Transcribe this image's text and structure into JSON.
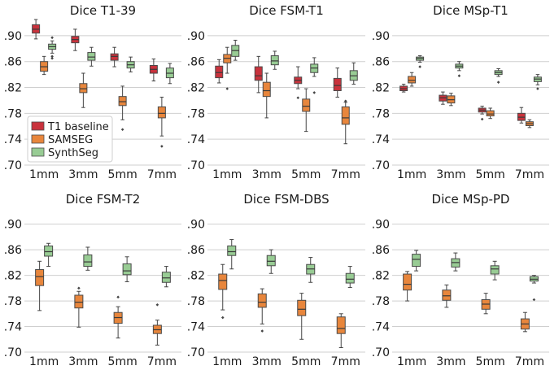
{
  "colors": {
    "t1_baseline": "#c9323c",
    "samseg": "#e8863c",
    "synthseg": "#98cc94",
    "grid": "#cfcfcf"
  },
  "legend": {
    "placement": "lower-left of first panel",
    "entries": [
      "T1 baseline",
      "SAMSEG",
      "SynthSeg"
    ]
  },
  "chart_data": [
    {
      "type": "box",
      "title": "Dice T1-39",
      "categories": [
        "1mm",
        "3mm",
        "5mm",
        "7mm"
      ],
      "ylim": [
        0.7,
        0.925
      ],
      "yticks": [
        ".70",
        ".74",
        ".78",
        ".82",
        ".86",
        ".90"
      ],
      "series": [
        {
          "name": "T1 baseline",
          "boxes": [
            {
              "lo": 0.895,
              "q1": 0.904,
              "med": 0.91,
              "q3": 0.917,
              "hi": 0.925,
              "fliers": []
            },
            {
              "lo": 0.877,
              "q1": 0.889,
              "med": 0.894,
              "q3": 0.899,
              "hi": 0.91,
              "fliers": []
            },
            {
              "lo": 0.852,
              "q1": 0.862,
              "med": 0.868,
              "q3": 0.872,
              "hi": 0.882,
              "fliers": []
            },
            {
              "lo": 0.83,
              "q1": 0.842,
              "med": 0.848,
              "q3": 0.854,
              "hi": 0.864,
              "fliers": []
            }
          ]
        },
        {
          "name": "SAMSEG",
          "boxes": [
            {
              "lo": 0.84,
              "q1": 0.845,
              "med": 0.852,
              "q3": 0.86,
              "hi": 0.868,
              "fliers": []
            },
            {
              "lo": 0.789,
              "q1": 0.812,
              "med": 0.818,
              "q3": 0.826,
              "hi": 0.842,
              "fliers": []
            },
            {
              "lo": 0.77,
              "q1": 0.792,
              "med": 0.798,
              "q3": 0.806,
              "hi": 0.822,
              "fliers": [
                0.755
              ]
            },
            {
              "lo": 0.745,
              "q1": 0.773,
              "med": 0.78,
              "q3": 0.79,
              "hi": 0.805,
              "fliers": [
                0.729
              ]
            }
          ]
        },
        {
          "name": "SynthSeg",
          "boxes": [
            {
              "lo": 0.873,
              "q1": 0.879,
              "med": 0.883,
              "q3": 0.887,
              "hi": 0.892,
              "fliers": [
                0.868,
                0.865,
                0.897
              ]
            },
            {
              "lo": 0.853,
              "q1": 0.862,
              "med": 0.867,
              "q3": 0.874,
              "hi": 0.882,
              "fliers": []
            },
            {
              "lo": 0.844,
              "q1": 0.85,
              "med": 0.855,
              "q3": 0.86,
              "hi": 0.867,
              "fliers": []
            },
            {
              "lo": 0.826,
              "q1": 0.835,
              "med": 0.842,
              "q3": 0.85,
              "hi": 0.857,
              "fliers": []
            }
          ]
        }
      ]
    },
    {
      "type": "box",
      "title": "Dice FSM-T1",
      "categories": [
        "1mm",
        "3mm",
        "5mm",
        "7mm"
      ],
      "ylim": [
        0.7,
        0.925
      ],
      "yticks": [
        ".70",
        ".74",
        ".78",
        ".82",
        ".86",
        ".90"
      ],
      "series": [
        {
          "name": "T1 baseline",
          "boxes": [
            {
              "lo": 0.827,
              "q1": 0.835,
              "med": 0.843,
              "q3": 0.853,
              "hi": 0.863,
              "fliers": []
            },
            {
              "lo": 0.812,
              "q1": 0.831,
              "med": 0.838,
              "q3": 0.852,
              "hi": 0.868,
              "fliers": []
            },
            {
              "lo": 0.818,
              "q1": 0.826,
              "med": 0.831,
              "q3": 0.836,
              "hi": 0.852,
              "fliers": [
                0.804
              ]
            },
            {
              "lo": 0.805,
              "q1": 0.815,
              "med": 0.823,
              "q3": 0.834,
              "hi": 0.85,
              "fliers": []
            }
          ]
        },
        {
          "name": "SAMSEG",
          "boxes": [
            {
              "lo": 0.842,
              "q1": 0.858,
              "med": 0.865,
              "q3": 0.871,
              "hi": 0.882,
              "fliers": [
                0.818
              ]
            },
            {
              "lo": 0.773,
              "q1": 0.806,
              "med": 0.815,
              "q3": 0.828,
              "hi": 0.842,
              "fliers": []
            },
            {
              "lo": 0.752,
              "q1": 0.783,
              "med": 0.791,
              "q3": 0.802,
              "hi": 0.818,
              "fliers": []
            },
            {
              "lo": 0.733,
              "q1": 0.763,
              "med": 0.773,
              "q3": 0.79,
              "hi": 0.797,
              "fliers": [
                0.799
              ]
            }
          ]
        },
        {
          "name": "SynthSeg",
          "boxes": [
            {
              "lo": 0.862,
              "q1": 0.868,
              "med": 0.877,
              "q3": 0.885,
              "hi": 0.893,
              "fliers": []
            },
            {
              "lo": 0.848,
              "q1": 0.855,
              "med": 0.861,
              "q3": 0.869,
              "hi": 0.876,
              "fliers": []
            },
            {
              "lo": 0.837,
              "q1": 0.843,
              "med": 0.85,
              "q3": 0.856,
              "hi": 0.866,
              "fliers": [
                0.812
              ]
            },
            {
              "lo": 0.825,
              "q1": 0.831,
              "med": 0.838,
              "q3": 0.846,
              "hi": 0.858,
              "fliers": []
            }
          ]
        }
      ]
    },
    {
      "type": "box",
      "title": "Dice MSp-T1",
      "categories": [
        "1mm",
        "3mm",
        "5mm",
        "7mm"
      ],
      "ylim": [
        0.7,
        0.925
      ],
      "yticks": [
        ".70",
        ".74",
        ".78",
        ".82",
        ".86",
        ".90"
      ],
      "series": [
        {
          "name": "T1 baseline",
          "boxes": [
            {
              "lo": 0.813,
              "q1": 0.815,
              "med": 0.818,
              "q3": 0.822,
              "hi": 0.825,
              "fliers": []
            },
            {
              "lo": 0.794,
              "q1": 0.799,
              "med": 0.804,
              "q3": 0.808,
              "hi": 0.813,
              "fliers": []
            },
            {
              "lo": 0.779,
              "q1": 0.782,
              "med": 0.785,
              "q3": 0.788,
              "hi": 0.791,
              "fliers": [
                0.771
              ]
            },
            {
              "lo": 0.765,
              "q1": 0.769,
              "med": 0.774,
              "q3": 0.78,
              "hi": 0.789,
              "fliers": []
            }
          ]
        },
        {
          "name": "SAMSEG",
          "boxes": [
            {
              "lo": 0.822,
              "q1": 0.827,
              "med": 0.831,
              "q3": 0.837,
              "hi": 0.843,
              "fliers": []
            },
            {
              "lo": 0.792,
              "q1": 0.796,
              "med": 0.801,
              "q3": 0.807,
              "hi": 0.811,
              "fliers": []
            },
            {
              "lo": 0.772,
              "q1": 0.776,
              "med": 0.779,
              "q3": 0.784,
              "hi": 0.788,
              "fliers": []
            },
            {
              "lo": 0.758,
              "q1": 0.761,
              "med": 0.764,
              "q3": 0.767,
              "hi": 0.77,
              "fliers": []
            }
          ]
        },
        {
          "name": "SynthSeg",
          "boxes": [
            {
              "lo": 0.859,
              "q1": 0.862,
              "med": 0.865,
              "q3": 0.867,
              "hi": 0.869,
              "fliers": [
                0.852
              ]
            },
            {
              "lo": 0.846,
              "q1": 0.85,
              "med": 0.853,
              "q3": 0.856,
              "hi": 0.86,
              "fliers": [
                0.838
              ]
            },
            {
              "lo": 0.837,
              "q1": 0.84,
              "med": 0.843,
              "q3": 0.846,
              "hi": 0.849,
              "fliers": [
                0.828
              ]
            },
            {
              "lo": 0.824,
              "q1": 0.829,
              "med": 0.833,
              "q3": 0.836,
              "hi": 0.84,
              "fliers": [
                0.818
              ]
            }
          ]
        }
      ]
    },
    {
      "type": "box",
      "title": "Dice FSM-T2",
      "categories": [
        "1mm",
        "3mm",
        "5mm",
        "7mm"
      ],
      "ylim": [
        0.7,
        0.925
      ],
      "yticks": [
        ".70",
        ".74",
        ".78",
        ".82",
        ".86",
        ".90"
      ],
      "series": [
        {
          "name": "SAMSEG",
          "boxes": [
            {
              "lo": 0.765,
              "q1": 0.804,
              "med": 0.818,
              "q3": 0.829,
              "hi": 0.842,
              "fliers": []
            },
            {
              "lo": 0.739,
              "q1": 0.769,
              "med": 0.778,
              "q3": 0.789,
              "hi": 0.795,
              "fliers": [
                0.8
              ]
            },
            {
              "lo": 0.722,
              "q1": 0.745,
              "med": 0.754,
              "q3": 0.762,
              "hi": 0.771,
              "fliers": [
                0.786
              ]
            },
            {
              "lo": 0.711,
              "q1": 0.729,
              "med": 0.735,
              "q3": 0.742,
              "hi": 0.75,
              "fliers": [
                0.774
              ]
            }
          ]
        },
        {
          "name": "SynthSeg",
          "boxes": [
            {
              "lo": 0.834,
              "q1": 0.85,
              "med": 0.857,
              "q3": 0.866,
              "hi": 0.87,
              "fliers": []
            },
            {
              "lo": 0.828,
              "q1": 0.834,
              "med": 0.841,
              "q3": 0.852,
              "hi": 0.864,
              "fliers": []
            },
            {
              "lo": 0.81,
              "q1": 0.821,
              "med": 0.827,
              "q3": 0.838,
              "hi": 0.849,
              "fliers": []
            },
            {
              "lo": 0.802,
              "q1": 0.809,
              "med": 0.816,
              "q3": 0.825,
              "hi": 0.834,
              "fliers": []
            }
          ]
        }
      ]
    },
    {
      "type": "box",
      "title": "Dice FSM-DBS",
      "categories": [
        "1mm",
        "3mm",
        "5mm",
        "7mm"
      ],
      "ylim": [
        0.7,
        0.925
      ],
      "yticks": [
        ".70",
        ".74",
        ".78",
        ".82",
        ".86",
        ".90"
      ],
      "series": [
        {
          "name": "SAMSEG",
          "boxes": [
            {
              "lo": 0.766,
              "q1": 0.798,
              "med": 0.812,
              "q3": 0.822,
              "hi": 0.837,
              "fliers": [
                0.754
              ]
            },
            {
              "lo": 0.744,
              "q1": 0.77,
              "med": 0.778,
              "q3": 0.791,
              "hi": 0.799,
              "fliers": [
                0.733
              ]
            },
            {
              "lo": 0.72,
              "q1": 0.757,
              "med": 0.767,
              "q3": 0.781,
              "hi": 0.792,
              "fliers": []
            },
            {
              "lo": 0.707,
              "q1": 0.729,
              "med": 0.737,
              "q3": 0.755,
              "hi": 0.76,
              "fliers": []
            }
          ]
        },
        {
          "name": "SynthSeg",
          "boxes": [
            {
              "lo": 0.83,
              "q1": 0.851,
              "med": 0.857,
              "q3": 0.866,
              "hi": 0.876,
              "fliers": []
            },
            {
              "lo": 0.823,
              "q1": 0.835,
              "med": 0.842,
              "q3": 0.851,
              "hi": 0.86,
              "fliers": []
            },
            {
              "lo": 0.809,
              "q1": 0.822,
              "med": 0.83,
              "q3": 0.837,
              "hi": 0.848,
              "fliers": []
            },
            {
              "lo": 0.801,
              "q1": 0.808,
              "med": 0.814,
              "q3": 0.823,
              "hi": 0.834,
              "fliers": []
            }
          ]
        }
      ]
    },
    {
      "type": "box",
      "title": "Dice MSp-PD",
      "categories": [
        "1mm",
        "3mm",
        "5mm",
        "7mm"
      ],
      "ylim": [
        0.7,
        0.925
      ],
      "yticks": [
        ".70",
        ".74",
        ".78",
        ".82",
        ".86",
        ".90"
      ],
      "series": [
        {
          "name": "SAMSEG",
          "boxes": [
            {
              "lo": 0.78,
              "q1": 0.797,
              "med": 0.806,
              "q3": 0.822,
              "hi": 0.826,
              "fliers": []
            },
            {
              "lo": 0.77,
              "q1": 0.781,
              "med": 0.788,
              "q3": 0.797,
              "hi": 0.805,
              "fliers": []
            },
            {
              "lo": 0.76,
              "q1": 0.767,
              "med": 0.775,
              "q3": 0.782,
              "hi": 0.792,
              "fliers": []
            },
            {
              "lo": 0.732,
              "q1": 0.736,
              "med": 0.744,
              "q3": 0.752,
              "hi": 0.762,
              "fliers": []
            }
          ]
        },
        {
          "name": "SynthSeg",
          "boxes": [
            {
              "lo": 0.827,
              "q1": 0.834,
              "med": 0.845,
              "q3": 0.853,
              "hi": 0.859,
              "fliers": []
            },
            {
              "lo": 0.827,
              "q1": 0.833,
              "med": 0.84,
              "q3": 0.846,
              "hi": 0.855,
              "fliers": []
            },
            {
              "lo": 0.813,
              "q1": 0.822,
              "med": 0.83,
              "q3": 0.835,
              "hi": 0.842,
              "fliers": []
            },
            {
              "lo": 0.808,
              "q1": 0.811,
              "med": 0.814,
              "q3": 0.818,
              "hi": 0.82,
              "fliers": [
                0.782
              ]
            }
          ]
        }
      ]
    }
  ]
}
